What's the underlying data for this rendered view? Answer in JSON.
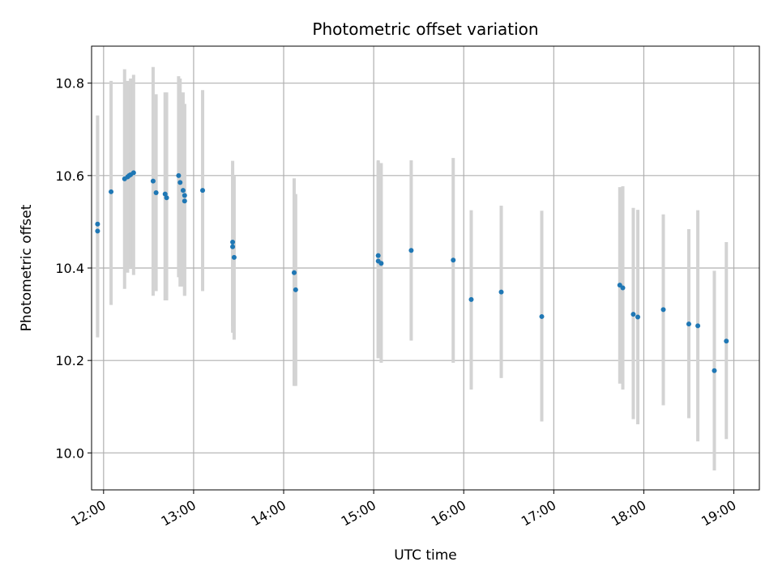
{
  "chart_data": {
    "type": "scatter",
    "title": "Photometric offset variation",
    "xlabel": "UTC time",
    "ylabel": "Photometric offset",
    "x_tick_labels": [
      "12:00",
      "13:00",
      "14:00",
      "15:00",
      "16:00",
      "17:00",
      "18:00",
      "19:00"
    ],
    "y_tick_labels": [
      "10.0",
      "10.2",
      "10.4",
      "10.6",
      "10.8"
    ],
    "xlim": [
      "11:52",
      "19:17"
    ],
    "ylim": [
      9.92,
      10.88
    ],
    "grid": true,
    "colors": {
      "points": "#1f77b4",
      "errorbars": "#d3d3d3",
      "grid": "#b0b0b0"
    },
    "series": [
      {
        "points": [
          {
            "x": "11:56",
            "y": 10.495,
            "lo": 10.26,
            "hi": 10.73
          },
          {
            "x": "11:56",
            "y": 10.48,
            "lo": 10.25,
            "hi": 10.71
          },
          {
            "x": "12:05",
            "y": 10.565,
            "lo": 10.32,
            "hi": 10.805
          },
          {
            "x": "12:14",
            "y": 10.593,
            "lo": 10.355,
            "hi": 10.83
          },
          {
            "x": "12:16",
            "y": 10.597,
            "lo": 10.39,
            "hi": 10.805
          },
          {
            "x": "12:17",
            "y": 10.6,
            "lo": 10.405,
            "hi": 10.795
          },
          {
            "x": "12:18",
            "y": 10.602,
            "lo": 10.4,
            "hi": 10.81
          },
          {
            "x": "12:20",
            "y": 10.606,
            "lo": 10.385,
            "hi": 10.818
          },
          {
            "x": "12:33",
            "y": 10.588,
            "lo": 10.34,
            "hi": 10.835
          },
          {
            "x": "12:35",
            "y": 10.563,
            "lo": 10.35,
            "hi": 10.776
          },
          {
            "x": "12:41",
            "y": 10.56,
            "lo": 10.33,
            "hi": 10.78
          },
          {
            "x": "12:42",
            "y": 10.552,
            "lo": 10.33,
            "hi": 10.78
          },
          {
            "x": "12:50",
            "y": 10.6,
            "lo": 10.38,
            "hi": 10.815
          },
          {
            "x": "12:51",
            "y": 10.585,
            "lo": 10.36,
            "hi": 10.81
          },
          {
            "x": "12:53",
            "y": 10.568,
            "lo": 10.36,
            "hi": 10.78
          },
          {
            "x": "12:54",
            "y": 10.545,
            "lo": 10.34,
            "hi": 10.755
          },
          {
            "x": "12:54",
            "y": 10.557,
            "lo": 10.34,
            "hi": 10.755
          },
          {
            "x": "13:06",
            "y": 10.568,
            "lo": 10.35,
            "hi": 10.785
          },
          {
            "x": "13:26",
            "y": 10.456,
            "lo": 10.275,
            "hi": 10.632
          },
          {
            "x": "13:26",
            "y": 10.446,
            "lo": 10.26,
            "hi": 10.615
          },
          {
            "x": "13:27",
            "y": 10.423,
            "lo": 10.245,
            "hi": 10.6
          },
          {
            "x": "14:07",
            "y": 10.39,
            "lo": 10.145,
            "hi": 10.594
          },
          {
            "x": "14:08",
            "y": 10.353,
            "lo": 10.145,
            "hi": 10.56
          },
          {
            "x": "15:03",
            "y": 10.427,
            "lo": 10.205,
            "hi": 10.633
          },
          {
            "x": "15:03",
            "y": 10.415,
            "lo": 10.205,
            "hi": 10.63
          },
          {
            "x": "15:05",
            "y": 10.41,
            "lo": 10.195,
            "hi": 10.627
          },
          {
            "x": "15:25",
            "y": 10.438,
            "lo": 10.243,
            "hi": 10.633
          },
          {
            "x": "15:53",
            "y": 10.417,
            "lo": 10.195,
            "hi": 10.638
          },
          {
            "x": "16:05",
            "y": 10.332,
            "lo": 10.137,
            "hi": 10.525
          },
          {
            "x": "16:25",
            "y": 10.348,
            "lo": 10.162,
            "hi": 10.535
          },
          {
            "x": "16:52",
            "y": 10.295,
            "lo": 10.068,
            "hi": 10.524
          },
          {
            "x": "17:44",
            "y": 10.363,
            "lo": 10.15,
            "hi": 10.575
          },
          {
            "x": "17:46",
            "y": 10.357,
            "lo": 10.137,
            "hi": 10.577
          },
          {
            "x": "17:53",
            "y": 10.3,
            "lo": 10.073,
            "hi": 10.53
          },
          {
            "x": "17:56",
            "y": 10.294,
            "lo": 10.062,
            "hi": 10.526
          },
          {
            "x": "18:13",
            "y": 10.31,
            "lo": 10.103,
            "hi": 10.516
          },
          {
            "x": "18:30",
            "y": 10.279,
            "lo": 10.075,
            "hi": 10.484
          },
          {
            "x": "18:36",
            "y": 10.275,
            "lo": 10.025,
            "hi": 10.525
          },
          {
            "x": "18:47",
            "y": 10.178,
            "lo": 9.962,
            "hi": 10.394
          },
          {
            "x": "18:55",
            "y": 10.242,
            "lo": 10.03,
            "hi": 10.456
          }
        ]
      }
    ]
  }
}
